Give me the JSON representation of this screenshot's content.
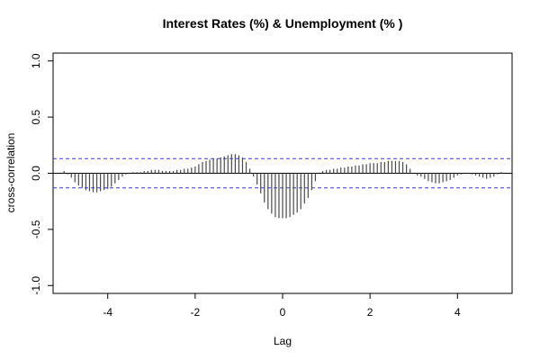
{
  "chart_data": {
    "type": "bar",
    "title": "Interest Rates (%) & Unemployment (% )",
    "xlabel": "Lag",
    "ylabel": "cross-correlation",
    "xlim": [
      -5.25,
      5.25
    ],
    "ylim": [
      -1.07,
      1.07
    ],
    "x_ticks": [
      -4,
      -2,
      0,
      2,
      4
    ],
    "y_ticks": [
      -1.0,
      -0.5,
      0.0,
      0.5,
      1.0
    ],
    "x_tick_labels": [
      "-4",
      "-2",
      "0",
      "2",
      "4"
    ],
    "y_tick_labels": [
      "-1.0",
      "-0.5",
      "0.0",
      "0.5",
      "1.0"
    ],
    "confidence_band": 0.13,
    "confidence_color": "#3a3ae0",
    "bar_color": "#4a4a4a",
    "x": [
      -5.0,
      -4.9167,
      -4.8333,
      -4.75,
      -4.6667,
      -4.5833,
      -4.5,
      -4.4167,
      -4.3333,
      -4.25,
      -4.1667,
      -4.0833,
      -4.0,
      -3.9167,
      -3.8333,
      -3.75,
      -3.6667,
      -3.5833,
      -3.5,
      -3.4167,
      -3.3333,
      -3.25,
      -3.1667,
      -3.0833,
      -3.0,
      -2.9167,
      -2.8333,
      -2.75,
      -2.6667,
      -2.5833,
      -2.5,
      -2.4167,
      -2.3333,
      -2.25,
      -2.1667,
      -2.0833,
      -2.0,
      -1.9167,
      -1.8333,
      -1.75,
      -1.6667,
      -1.5833,
      -1.5,
      -1.4167,
      -1.3333,
      -1.25,
      -1.1667,
      -1.0833,
      -1.0,
      -0.9167,
      -0.8333,
      -0.75,
      -0.6667,
      -0.5833,
      -0.5,
      -0.4167,
      -0.3333,
      -0.25,
      -0.1667,
      -0.0833,
      0.0,
      0.0833,
      0.1667,
      0.25,
      0.3333,
      0.4167,
      0.5,
      0.5833,
      0.6667,
      0.75,
      0.8333,
      0.9167,
      1.0,
      1.0833,
      1.1667,
      1.25,
      1.3333,
      1.4167,
      1.5,
      1.5833,
      1.6667,
      1.75,
      1.8333,
      1.9167,
      2.0,
      2.0833,
      2.1667,
      2.25,
      2.3333,
      2.4167,
      2.5,
      2.5833,
      2.6667,
      2.75,
      2.8333,
      2.9167,
      3.0,
      3.0833,
      3.1667,
      3.25,
      3.3333,
      3.4167,
      3.5,
      3.5833,
      3.6667,
      3.75,
      3.8333,
      3.9167,
      4.0,
      4.0833,
      4.1667,
      4.25,
      4.3333,
      4.4167,
      4.5,
      4.5833,
      4.6667,
      4.75,
      4.8333,
      4.9167,
      5.0
    ],
    "values": [
      0.02,
      -0.01,
      -0.04,
      -0.08,
      -0.11,
      -0.13,
      -0.15,
      -0.16,
      -0.17,
      -0.17,
      -0.16,
      -0.15,
      -0.14,
      -0.12,
      -0.09,
      -0.06,
      -0.03,
      -0.01,
      0.0,
      0.01,
      0.01,
      0.01,
      0.02,
      0.02,
      0.03,
      0.03,
      0.03,
      0.02,
      0.02,
      0.02,
      0.02,
      0.03,
      0.03,
      0.04,
      0.04,
      0.05,
      0.06,
      0.08,
      0.1,
      0.11,
      0.12,
      0.13,
      0.13,
      0.14,
      0.15,
      0.16,
      0.17,
      0.17,
      0.16,
      0.14,
      0.1,
      0.04,
      -0.03,
      -0.1,
      -0.18,
      -0.26,
      -0.32,
      -0.36,
      -0.39,
      -0.4,
      -0.4,
      -0.4,
      -0.39,
      -0.37,
      -0.35,
      -0.32,
      -0.27,
      -0.22,
      -0.15,
      -0.07,
      0.0,
      0.02,
      0.03,
      0.03,
      0.04,
      0.04,
      0.05,
      0.05,
      0.06,
      0.06,
      0.07,
      0.07,
      0.08,
      0.08,
      0.09,
      0.09,
      0.09,
      0.1,
      0.1,
      0.11,
      0.11,
      0.11,
      0.11,
      0.1,
      0.08,
      0.04,
      0.0,
      -0.02,
      -0.03,
      -0.05,
      -0.07,
      -0.08,
      -0.09,
      -0.09,
      -0.08,
      -0.07,
      -0.06,
      -0.04,
      -0.02,
      -0.01,
      0.0,
      0.0,
      -0.01,
      -0.02,
      -0.03,
      -0.04,
      -0.05,
      -0.04,
      -0.03,
      -0.01,
      0.01
    ]
  }
}
